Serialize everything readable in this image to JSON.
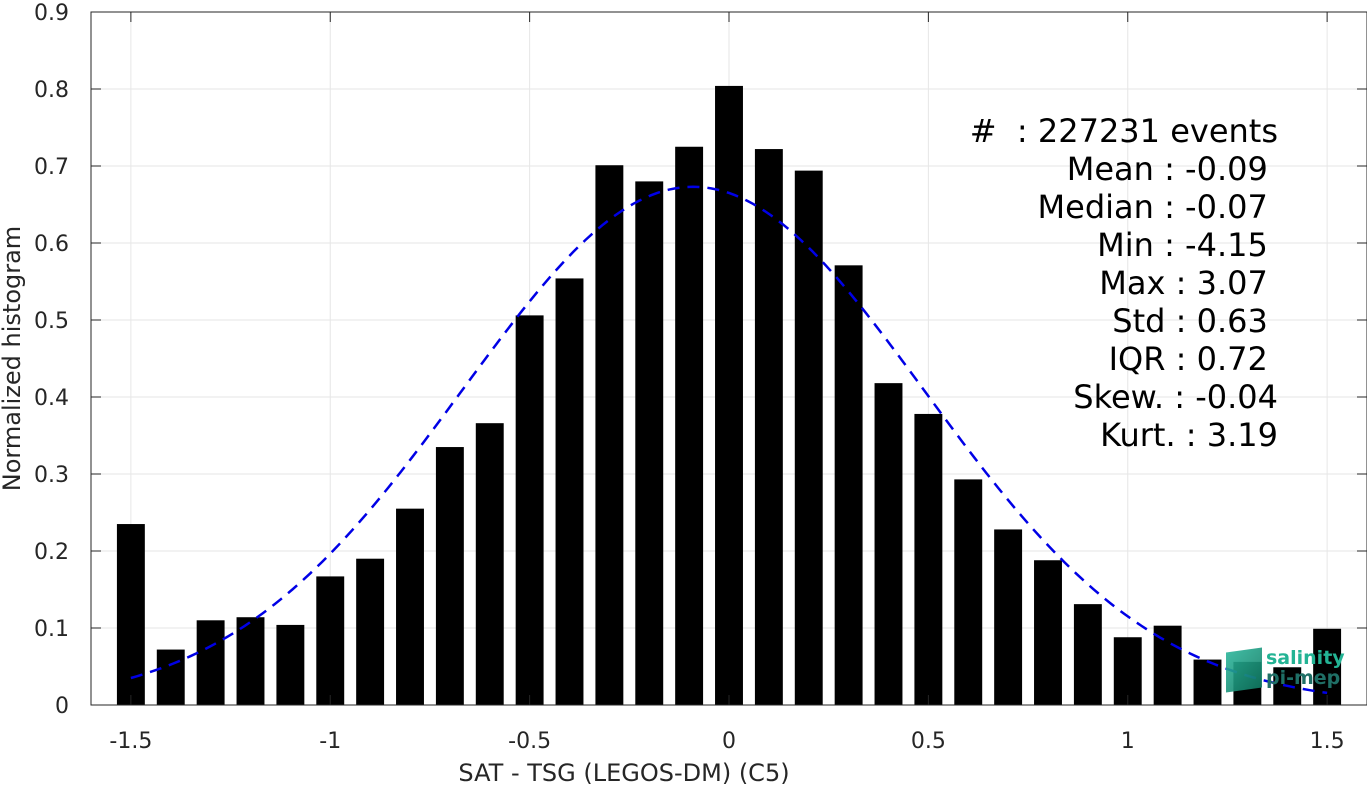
{
  "chart_data": {
    "type": "bar",
    "xlabel": "SAT - TSG (LEGOS-DM) (C5)",
    "ylabel": "Normalized histogram",
    "xlim": [
      -1.6,
      1.6
    ],
    "ylim": [
      0,
      0.9
    ],
    "xticks": [
      -1.5,
      -1,
      -0.5,
      0,
      0.5,
      1,
      1.5
    ],
    "xtick_labels": [
      "-1.5",
      "-1",
      "-0.5",
      "0",
      "0.5",
      "1",
      "1.5"
    ],
    "yticks": [
      0,
      0.1,
      0.2,
      0.3,
      0.4,
      0.5,
      0.6,
      0.7,
      0.8,
      0.9
    ],
    "ytick_labels": [
      "0",
      "0.1",
      "0.2",
      "0.3",
      "0.4",
      "0.5",
      "0.6",
      "0.7",
      "0.8",
      "0.9"
    ],
    "grid": true,
    "bar_width": 0.07,
    "bars": {
      "x": [
        -1.5,
        -1.4,
        -1.3,
        -1.2,
        -1.1,
        -1.0,
        -0.9,
        -0.8,
        -0.7,
        -0.6,
        -0.5,
        -0.4,
        -0.3,
        -0.2,
        -0.1,
        0.0,
        0.1,
        0.2,
        0.3,
        0.4,
        0.5,
        0.6,
        0.7,
        0.8,
        0.9,
        1.0,
        1.1,
        1.2,
        1.3,
        1.4,
        1.5
      ],
      "values": [
        0.235,
        0.072,
        0.11,
        0.114,
        0.104,
        0.167,
        0.19,
        0.255,
        0.335,
        0.366,
        0.506,
        0.554,
        0.701,
        0.68,
        0.725,
        0.804,
        0.722,
        0.694,
        0.571,
        0.418,
        0.378,
        0.293,
        0.228,
        0.188,
        0.131,
        0.088,
        0.103,
        0.059,
        0.056,
        0.049,
        0.099
      ],
      "color": "#000000"
    },
    "fit": {
      "style": "dashed",
      "color": "#0000e6",
      "mean": -0.09,
      "std": 0.58,
      "peak": 0.673,
      "x_range": [
        -1.5,
        1.5
      ]
    }
  },
  "stats": [
    "#  : 227231 events",
    "Mean : -0.09 ",
    "Median : -0.07 ",
    "Min : -4.15 ",
    "Max : 3.07 ",
    "Std : 0.63 ",
    "IQR : 0.72 ",
    "Skew. : -0.04",
    "Kurt. : 3.19"
  ],
  "logo": {
    "line1": "salinity",
    "line2": "pi-mep"
  }
}
